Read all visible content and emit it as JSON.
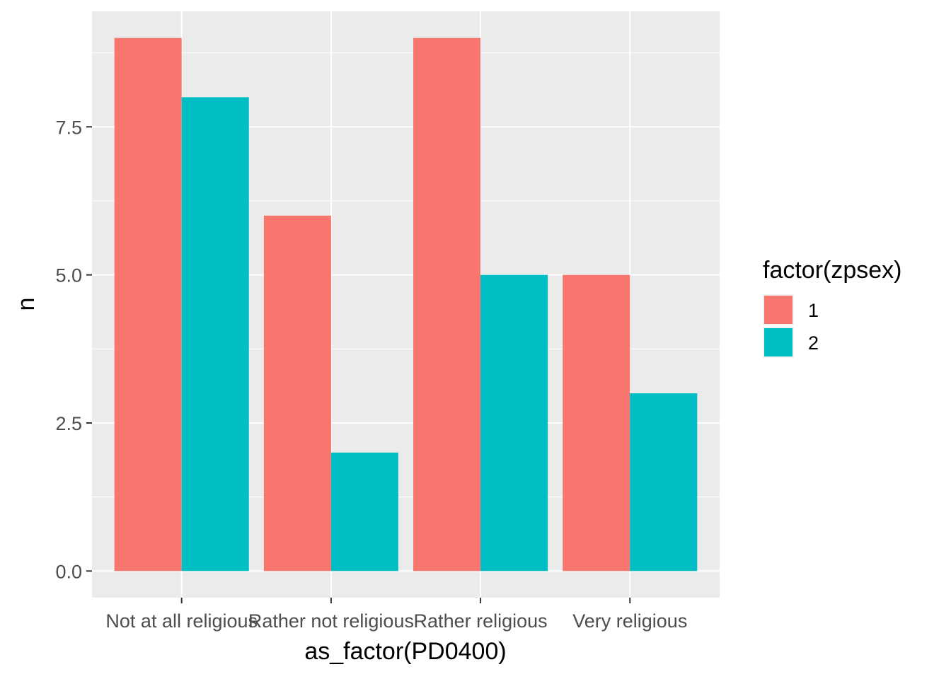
{
  "chart_data": {
    "type": "bar",
    "categories": [
      "Not at all religious",
      "Rather not religious",
      "Rather religious",
      "Very religious"
    ],
    "series": [
      {
        "name": "1",
        "values": [
          9,
          6,
          9,
          5
        ],
        "color": "#F8766D"
      },
      {
        "name": "2",
        "values": [
          8,
          2,
          5,
          3
        ],
        "color": "#00BFC4"
      }
    ],
    "xlabel": "as_factor(PD0400)",
    "ylabel": "n",
    "ylim": [
      -0.45,
      9.45
    ],
    "yticks": [
      0,
      2.5,
      5,
      7.5
    ],
    "ytick_labels": [
      "0.0",
      "2.5",
      "5.0",
      "7.5"
    ],
    "grid": true,
    "legend": {
      "title": "factor(zpsex)",
      "position": "right"
    },
    "panel_background": "#EBEBEB",
    "grid_color": "#FFFFFF"
  }
}
